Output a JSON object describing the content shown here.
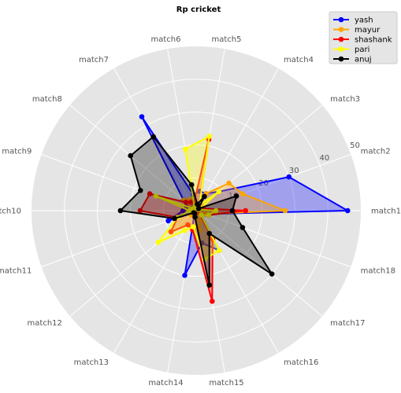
{
  "chart_data": {
    "type": "radar",
    "title": "Rp cricket",
    "categories": [
      "match1",
      "match2",
      "match3",
      "match4",
      "match5",
      "match6",
      "match7",
      "match8",
      "match9",
      "match10",
      "match11",
      "match12",
      "match13",
      "match14",
      "match15",
      "match16",
      "match17",
      "match18"
    ],
    "r_ticks": [
      10,
      20,
      30,
      40,
      50
    ],
    "rlim": [
      0,
      50
    ],
    "grid": true,
    "legend_position": "top-right",
    "series": [
      {
        "name": "yash",
        "color": "#0000ff",
        "values": [
          46,
          30,
          9,
          6,
          6,
          5,
          33,
          5,
          3,
          4,
          9,
          1,
          1,
          20,
          10,
          14,
          2,
          3
        ]
      },
      {
        "name": "mayur",
        "color": "#ffa500",
        "values": [
          27,
          15,
          13,
          6,
          2,
          2,
          4,
          5,
          1,
          1,
          1,
          2,
          1,
          2,
          6,
          3,
          1,
          3
        ]
      },
      {
        "name": "shashank",
        "color": "#ff0000",
        "values": [
          15,
          2,
          2,
          2,
          22,
          3,
          3,
          4,
          15,
          17,
          6,
          10,
          5,
          6,
          28,
          10,
          1,
          4
        ]
      },
      {
        "name": "pari",
        "color": "#ffff00",
        "values": [
          6,
          1,
          9,
          2,
          23,
          19,
          1,
          1,
          13,
          2,
          6,
          15,
          7,
          5,
          15,
          14,
          2,
          4
        ]
      },
      {
        "name": "anuj",
        "color": "#000000",
        "values": [
          11,
          13,
          1,
          5,
          2,
          8,
          26,
          26,
          18,
          23,
          7,
          1,
          1,
          2,
          23,
          8,
          30,
          15
        ]
      }
    ]
  }
}
